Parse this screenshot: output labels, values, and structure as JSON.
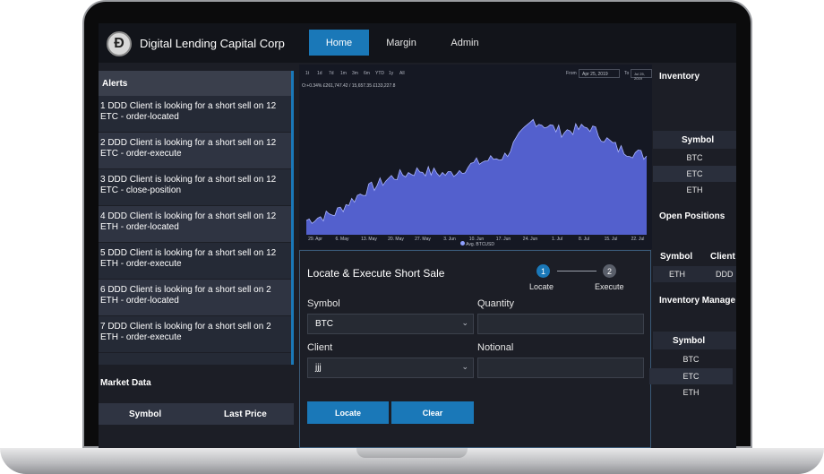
{
  "app": {
    "brand": "Digital Lending Capital Corp",
    "logo_letter": "Ð"
  },
  "nav": {
    "tabs": [
      {
        "label": "Home"
      },
      {
        "label": "Margin"
      },
      {
        "label": "Admin"
      }
    ]
  },
  "alerts": {
    "title": "Alerts",
    "items": [
      {
        "line1": "1 DDD Client is looking for a short sell on 12",
        "line2": "ETC - order-located"
      },
      {
        "line1": "2 DDD Client is looking for a short sell on 12",
        "line2": "ETC - order-execute"
      },
      {
        "line1": "3 DDD Client is looking for a short sell on 12",
        "line2": "ETC - close-position"
      },
      {
        "line1": "4 DDD Client is looking for a short sell on 12",
        "line2": "ETH - order-located"
      },
      {
        "line1": "5 DDD Client is looking for a short sell on 12",
        "line2": "ETH - order-execute"
      },
      {
        "line1": "6 DDD Client is looking for a short sell on 2",
        "line2": "ETH - order-located"
      },
      {
        "line1": "7 DDD Client is looking for a short sell on 2",
        "line2": "ETH - order-execute"
      }
    ]
  },
  "market": {
    "title": "Market Data",
    "columns": [
      "Symbol",
      "Last Price"
    ]
  },
  "chart": {
    "ranges": [
      "1t",
      "1d",
      "7d",
      "1m",
      "3m",
      "6m",
      "YTD",
      "1y",
      "All"
    ],
    "from_label": "From",
    "from": "Apr 25, 2019",
    "to_label": "To",
    "to": "Jul 25, 2019",
    "readout": "O:+0.34%  £261,747.42 / 15,657.35  £133,227.8",
    "x_ticks": [
      "29. Apr",
      "6. May",
      "13. May",
      "20. May",
      "27. May",
      "3. Jun",
      "10. Jun",
      "17. Jun",
      "24. Jun",
      "1. Jul",
      "8. Jul",
      "15. Jul",
      "22. Jul"
    ],
    "legend": "Avg. BTCUSD",
    "accent": "#5a68e0"
  },
  "chart_data": {
    "type": "area",
    "x": [
      "29. Apr",
      "6. May",
      "13. May",
      "20. May",
      "27. May",
      "3. Jun",
      "10. Jun",
      "17. Jun",
      "24. Jun",
      "1. Jul",
      "8. Jul",
      "15. Jul",
      "22. Jul"
    ],
    "series": [
      {
        "name": "Avg. BTCUSD",
        "values": [
          0.1,
          0.15,
          0.3,
          0.4,
          0.45,
          0.42,
          0.5,
          0.55,
          0.8,
          0.72,
          0.75,
          0.6,
          0.55
        ]
      }
    ],
    "legend": "bottom-center"
  },
  "form": {
    "title": "Locate & Execute Short Sale",
    "steps": [
      {
        "num": "1",
        "label": "Locate"
      },
      {
        "num": "2",
        "label": "Execute"
      }
    ],
    "symbol_label": "Symbol",
    "symbol_value": "BTC",
    "quantity_label": "Quantity",
    "quantity_value": "",
    "client_label": "Client",
    "client_value": "jjj",
    "notional_label": "Notional",
    "notional_value": "",
    "locate_button": "Locate",
    "clear_button": "Clear"
  },
  "inventory": {
    "title": "Inventory",
    "header": "Symbol",
    "rows": [
      "BTC",
      "ETC",
      "ETH"
    ]
  },
  "positions": {
    "title": "Open Positions",
    "headers": [
      "Symbol",
      "Client"
    ],
    "rows": [
      [
        "ETH",
        "DDD"
      ]
    ]
  },
  "inv_mgmt": {
    "title": "Inventory Manage",
    "header": "Symbol",
    "rows": [
      "BTC",
      "ETC",
      "ETH"
    ]
  }
}
